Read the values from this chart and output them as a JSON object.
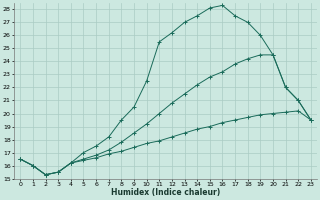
{
  "xlabel": "Humidex (Indice chaleur)",
  "ylabel": "",
  "background_color": "#cce8e0",
  "grid_color": "#aaccC4",
  "line_color": "#1a6b5a",
  "xlim": [
    -0.5,
    23.5
  ],
  "ylim": [
    15,
    28.5
  ],
  "xticks": [
    0,
    1,
    2,
    3,
    4,
    5,
    6,
    7,
    8,
    9,
    10,
    11,
    12,
    13,
    14,
    15,
    16,
    17,
    18,
    19,
    20,
    21,
    22,
    23
  ],
  "yticks": [
    15,
    16,
    17,
    18,
    19,
    20,
    21,
    22,
    23,
    24,
    25,
    26,
    27,
    28
  ],
  "series": [
    {
      "x": [
        0,
        1,
        2,
        3,
        4,
        5,
        6,
        7,
        8,
        9,
        10,
        11,
        12,
        13,
        14,
        15,
        16,
        17,
        18,
        19,
        20,
        21,
        22,
        23
      ],
      "y": [
        16.5,
        16.0,
        15.3,
        15.5,
        16.2,
        17.0,
        17.5,
        18.2,
        19.5,
        20.5,
        22.5,
        25.5,
        26.2,
        27.0,
        27.5,
        28.1,
        28.3,
        27.5,
        27.0,
        26.0,
        24.5,
        22.0,
        21.0,
        19.5
      ],
      "marker": "+"
    },
    {
      "x": [
        0,
        1,
        2,
        3,
        4,
        5,
        6,
        7,
        8,
        9,
        10,
        11,
        12,
        13,
        14,
        15,
        16,
        17,
        18,
        19,
        20,
        21,
        22,
        23
      ],
      "y": [
        16.5,
        16.0,
        15.3,
        15.5,
        16.2,
        16.5,
        16.8,
        17.2,
        17.8,
        18.5,
        19.2,
        20.0,
        20.8,
        21.5,
        22.2,
        22.8,
        23.2,
        23.8,
        24.2,
        24.5,
        24.5,
        22.0,
        21.0,
        19.5
      ],
      "marker": "+"
    },
    {
      "x": [
        0,
        1,
        2,
        3,
        4,
        5,
        6,
        7,
        8,
        9,
        10,
        11,
        12,
        13,
        14,
        15,
        16,
        17,
        18,
        19,
        20,
        21,
        22,
        23
      ],
      "y": [
        16.5,
        16.0,
        15.3,
        15.5,
        16.2,
        16.4,
        16.6,
        16.9,
        17.1,
        17.4,
        17.7,
        17.9,
        18.2,
        18.5,
        18.8,
        19.0,
        19.3,
        19.5,
        19.7,
        19.9,
        20.0,
        20.1,
        20.2,
        19.5
      ],
      "marker": "+"
    }
  ]
}
